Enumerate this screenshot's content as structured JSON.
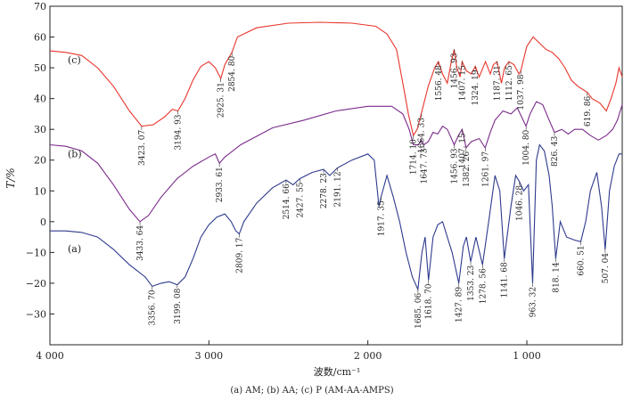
{
  "chart_data": {
    "type": "line",
    "xlabel": "波数/cm⁻¹",
    "ylabel": "T/%",
    "caption": "(a) AM; (b) AA; (c) P (AM-AA-AMPS)",
    "xlim": [
      4000,
      400
    ],
    "ylim": [
      -40,
      70
    ],
    "x_ticks": [
      {
        "value": 4000,
        "label": "4 000"
      },
      {
        "value": 3000,
        "label": "3 000"
      },
      {
        "value": 2000,
        "label": "2 000"
      },
      {
        "value": 1000,
        "label": "1 000"
      }
    ],
    "y_ticks": [
      -30,
      -20,
      -10,
      0,
      10,
      20,
      30,
      40,
      50,
      60,
      70
    ],
    "series": [
      {
        "name": "(c)",
        "color": "#e8352c",
        "points": [
          [
            4000,
            55.5
          ],
          [
            3900,
            55
          ],
          [
            3800,
            54
          ],
          [
            3700,
            50
          ],
          [
            3600,
            44
          ],
          [
            3500,
            36
          ],
          [
            3423.07,
            31
          ],
          [
            3350,
            31.5
          ],
          [
            3280,
            34
          ],
          [
            3230,
            36.5
          ],
          [
            3194.93,
            36
          ],
          [
            3150,
            40
          ],
          [
            3100,
            46
          ],
          [
            3050,
            50.5
          ],
          [
            3000,
            52
          ],
          [
            2960,
            50
          ],
          [
            2925.31,
            46.5
          ],
          [
            2900,
            51
          ],
          [
            2854.8,
            55
          ],
          [
            2820,
            60
          ],
          [
            2700,
            63
          ],
          [
            2500,
            64.5
          ],
          [
            2300,
            64.8
          ],
          [
            2100,
            64.5
          ],
          [
            1950,
            63.5
          ],
          [
            1880,
            61
          ],
          [
            1820,
            56
          ],
          [
            1780,
            45
          ],
          [
            1745,
            35
          ],
          [
            1714.1,
            28
          ],
          [
            1690,
            30
          ],
          [
            1664.33,
            35
          ],
          [
            1620,
            44
          ],
          [
            1580,
            50
          ],
          [
            1556.48,
            52
          ],
          [
            1530,
            48
          ],
          [
            1500,
            45
          ],
          [
            1475,
            52
          ],
          [
            1456.93,
            56
          ],
          [
            1440,
            50
          ],
          [
            1420,
            47
          ],
          [
            1407.15,
            52
          ],
          [
            1380,
            49
          ],
          [
            1350,
            48
          ],
          [
            1324.19,
            50.5
          ],
          [
            1300,
            47
          ],
          [
            1260,
            52
          ],
          [
            1230,
            48
          ],
          [
            1210,
            51
          ],
          [
            1187.31,
            52
          ],
          [
            1160,
            45
          ],
          [
            1140,
            50
          ],
          [
            1112.65,
            52
          ],
          [
            1080,
            51
          ],
          [
            1050,
            48
          ],
          [
            1037.98,
            49
          ],
          [
            1000,
            57
          ],
          [
            960,
            60
          ],
          [
            920,
            58
          ],
          [
            880,
            56
          ],
          [
            840,
            55
          ],
          [
            800,
            53
          ],
          [
            760,
            50
          ],
          [
            720,
            46
          ],
          [
            680,
            44
          ],
          [
            619.86,
            42
          ],
          [
            590,
            40
          ],
          [
            540,
            38.5
          ],
          [
            500,
            36
          ],
          [
            470,
            40
          ],
          [
            440,
            45
          ],
          [
            420,
            50
          ],
          [
            400,
            47
          ]
        ]
      },
      {
        "name": "(b)",
        "color": "#7a2a8a",
        "points": [
          [
            4000,
            25
          ],
          [
            3900,
            24.5
          ],
          [
            3800,
            23
          ],
          [
            3700,
            19
          ],
          [
            3600,
            12
          ],
          [
            3500,
            4
          ],
          [
            3433.64,
            0
          ],
          [
            3380,
            2
          ],
          [
            3300,
            8
          ],
          [
            3200,
            14
          ],
          [
            3100,
            18
          ],
          [
            3000,
            21
          ],
          [
            2960,
            22
          ],
          [
            2933.61,
            19
          ],
          [
            2900,
            21
          ],
          [
            2800,
            25
          ],
          [
            2600,
            30.5
          ],
          [
            2400,
            33
          ],
          [
            2200,
            36
          ],
          [
            2000,
            37.5
          ],
          [
            1850,
            37.5
          ],
          [
            1780,
            35
          ],
          [
            1740,
            30
          ],
          [
            1714.1,
            25
          ],
          [
            1680,
            25
          ],
          [
            1664.33,
            26.5
          ],
          [
            1647.73,
            25
          ],
          [
            1620,
            26
          ],
          [
            1590,
            29
          ],
          [
            1560,
            28.5
          ],
          [
            1530,
            31
          ],
          [
            1500,
            30
          ],
          [
            1456.93,
            25
          ],
          [
            1430,
            28
          ],
          [
            1407.15,
            30
          ],
          [
            1390,
            26
          ],
          [
            1382.26,
            24
          ],
          [
            1350,
            26
          ],
          [
            1300,
            27
          ],
          [
            1261.97,
            24
          ],
          [
            1230,
            29
          ],
          [
            1200,
            33
          ],
          [
            1150,
            36
          ],
          [
            1100,
            35
          ],
          [
            1060,
            37
          ],
          [
            1004.8,
            31
          ],
          [
            980,
            35
          ],
          [
            940,
            39
          ],
          [
            900,
            38
          ],
          [
            860,
            33
          ],
          [
            826.43,
            29
          ],
          [
            780,
            30
          ],
          [
            740,
            28.5
          ],
          [
            700,
            30
          ],
          [
            650,
            30
          ],
          [
            600,
            28
          ],
          [
            550,
            26.5
          ],
          [
            500,
            28
          ],
          [
            460,
            30
          ],
          [
            430,
            33
          ],
          [
            400,
            38
          ]
        ]
      },
      {
        "name": "(a)",
        "color": "#2e3a8c",
        "points": [
          [
            4000,
            -3
          ],
          [
            3900,
            -3
          ],
          [
            3800,
            -3.5
          ],
          [
            3700,
            -5
          ],
          [
            3600,
            -9
          ],
          [
            3500,
            -14
          ],
          [
            3400,
            -18
          ],
          [
            3356.7,
            -21
          ],
          [
            3300,
            -20
          ],
          [
            3250,
            -19.5
          ],
          [
            3199.08,
            -20.5
          ],
          [
            3150,
            -18
          ],
          [
            3100,
            -12
          ],
          [
            3050,
            -5
          ],
          [
            3000,
            -1
          ],
          [
            2950,
            1.5
          ],
          [
            2900,
            2.5
          ],
          [
            2860,
            0
          ],
          [
            2830,
            -3
          ],
          [
            2809.17,
            -4
          ],
          [
            2780,
            0
          ],
          [
            2700,
            6
          ],
          [
            2600,
            11
          ],
          [
            2514.66,
            13.5
          ],
          [
            2470,
            12
          ],
          [
            2427.55,
            14
          ],
          [
            2350,
            16
          ],
          [
            2278.23,
            17
          ],
          [
            2240,
            15
          ],
          [
            2191.12,
            17.5
          ],
          [
            2100,
            20
          ],
          [
            2000,
            22
          ],
          [
            1960,
            20
          ],
          [
            1930,
            5
          ],
          [
            1917.35,
            8
          ],
          [
            1880,
            15
          ],
          [
            1840,
            8
          ],
          [
            1800,
            0
          ],
          [
            1760,
            -10
          ],
          [
            1720,
            -18
          ],
          [
            1685.06,
            -22
          ],
          [
            1660,
            -10
          ],
          [
            1640,
            -5
          ],
          [
            1618.7,
            -19
          ],
          [
            1590,
            -5
          ],
          [
            1560,
            -1
          ],
          [
            1530,
            0
          ],
          [
            1500,
            -5
          ],
          [
            1470,
            -10
          ],
          [
            1427.89,
            -20
          ],
          [
            1400,
            -8
          ],
          [
            1380,
            -5
          ],
          [
            1353.23,
            -13
          ],
          [
            1320,
            -5
          ],
          [
            1278.56,
            -14
          ],
          [
            1240,
            0
          ],
          [
            1200,
            15
          ],
          [
            1170,
            10
          ],
          [
            1141.68,
            -12
          ],
          [
            1100,
            5
          ],
          [
            1070,
            15
          ],
          [
            1046.28,
            13
          ],
          [
            1020,
            10
          ],
          [
            990,
            12
          ],
          [
            963.32,
            -20
          ],
          [
            940,
            20
          ],
          [
            920,
            25
          ],
          [
            890,
            23
          ],
          [
            860,
            15
          ],
          [
            840,
            5
          ],
          [
            818.14,
            -12
          ],
          [
            790,
            0
          ],
          [
            750,
            -5
          ],
          [
            700,
            -6
          ],
          [
            660.51,
            -6.5
          ],
          [
            630,
            0
          ],
          [
            600,
            10
          ],
          [
            560,
            16
          ],
          [
            530,
            5
          ],
          [
            507.04,
            -9
          ],
          [
            480,
            10
          ],
          [
            450,
            18
          ],
          [
            420,
            22
          ],
          [
            400,
            22
          ]
        ]
      }
    ],
    "peak_labels": [
      {
        "series": "(c)",
        "x": 3423.07,
        "text": "3423. 07"
      },
      {
        "series": "(c)",
        "x": 3194.93,
        "text": "3194. 93"
      },
      {
        "series": "(c)",
        "x": 2925.31,
        "text": "2925. 31"
      },
      {
        "series": "(c)",
        "x": 2854.8,
        "text": "2854. 80"
      },
      {
        "series": "(c)",
        "x": 1714.1,
        "text": "1714. 10"
      },
      {
        "series": "(c)",
        "x": 1664.33,
        "text": "1664. 33"
      },
      {
        "series": "(c)",
        "x": 1556.48,
        "text": "1556. 48"
      },
      {
        "series": "(c)",
        "x": 1456.93,
        "text": "1456. 93"
      },
      {
        "series": "(c)",
        "x": 1407.15,
        "text": "1407. 15"
      },
      {
        "series": "(c)",
        "x": 1324.19,
        "text": "1324. 19"
      },
      {
        "series": "(c)",
        "x": 1187.31,
        "text": "1187. 31"
      },
      {
        "series": "(c)",
        "x": 1112.65,
        "text": "1112. 65"
      },
      {
        "series": "(c)",
        "x": 1037.98,
        "text": "1037. 98"
      },
      {
        "series": "(c)",
        "x": 619.86,
        "text": "619. 86"
      },
      {
        "series": "(b)",
        "x": 3433.64,
        "text": "3433. 64"
      },
      {
        "series": "(b)",
        "x": 2933.61,
        "text": "2933. 61"
      },
      {
        "series": "(b)",
        "x": 1647.73,
        "text": "1647. 73"
      },
      {
        "series": "(b)",
        "x": 1456.93,
        "text": "1456. 93"
      },
      {
        "series": "(b)",
        "x": 1407.15,
        "text": "1407. 15"
      },
      {
        "series": "(b)",
        "x": 1382.26,
        "text": "1382. 26"
      },
      {
        "series": "(b)",
        "x": 1261.97,
        "text": "1261. 97"
      },
      {
        "series": "(b)",
        "x": 1004.8,
        "text": "1004. 80"
      },
      {
        "series": "(b)",
        "x": 826.43,
        "text": "826. 43"
      },
      {
        "series": "(a)",
        "x": 3356.7,
        "text": "3356. 70"
      },
      {
        "series": "(a)",
        "x": 3199.08,
        "text": "3199. 08"
      },
      {
        "series": "(a)",
        "x": 2809.17,
        "text": "2809. 17"
      },
      {
        "series": "(a)",
        "x": 2514.66,
        "text": "2514. 66"
      },
      {
        "series": "(a)",
        "x": 2427.55,
        "text": "2427. 55"
      },
      {
        "series": "(a)",
        "x": 2278.23,
        "text": "2278. 23"
      },
      {
        "series": "(a)",
        "x": 2191.12,
        "text": "2191. 12"
      },
      {
        "series": "(a)",
        "x": 1917.35,
        "text": "1917. 35"
      },
      {
        "series": "(a)",
        "x": 1685.06,
        "text": "1685. 06"
      },
      {
        "series": "(a)",
        "x": 1618.7,
        "text": "1618. 70"
      },
      {
        "series": "(a)",
        "x": 1427.89,
        "text": "1427. 89"
      },
      {
        "series": "(a)",
        "x": 1353.23,
        "text": "1353. 23"
      },
      {
        "series": "(a)",
        "x": 1278.56,
        "text": "1278. 56"
      },
      {
        "series": "(a)",
        "x": 1141.68,
        "text": "1141. 68"
      },
      {
        "series": "(a)",
        "x": 1046.28,
        "text": "1046. 28"
      },
      {
        "series": "(a)",
        "x": 963.32,
        "text": "963. 32"
      },
      {
        "series": "(a)",
        "x": 818.14,
        "text": "818. 14"
      },
      {
        "series": "(a)",
        "x": 660.51,
        "text": "660. 51"
      },
      {
        "series": "(a)",
        "x": 507.04,
        "text": "507. 04"
      }
    ],
    "grid": false,
    "legend": "inline labels (a), (b), (c) at left of each curve"
  }
}
